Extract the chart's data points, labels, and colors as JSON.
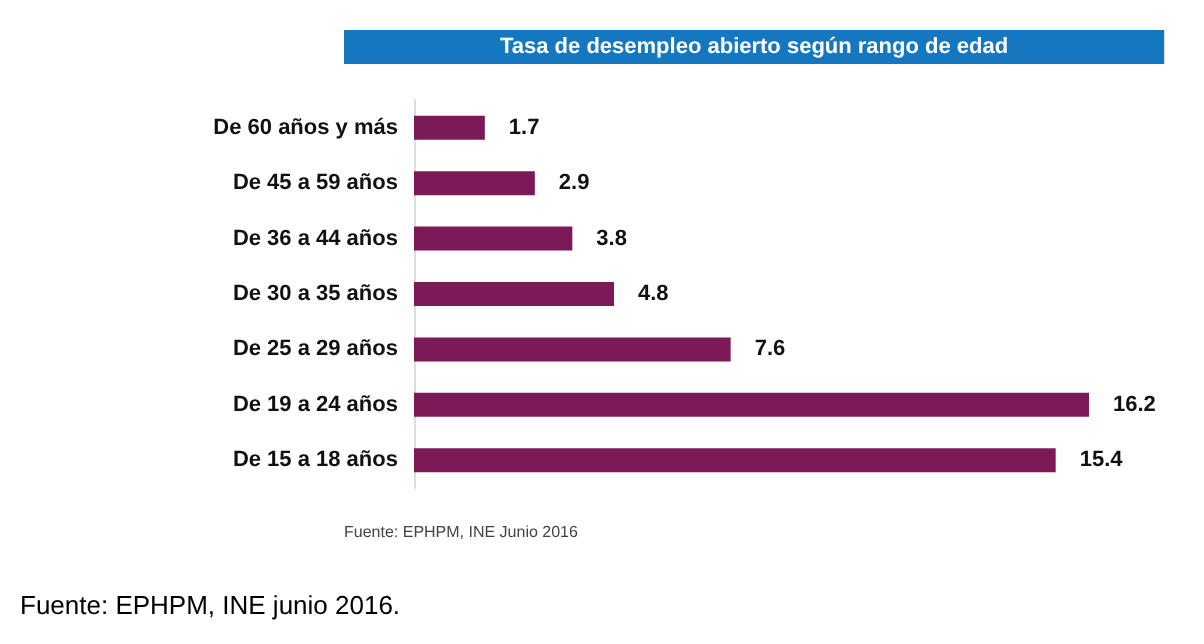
{
  "chart_data": {
    "type": "bar",
    "orientation": "horizontal",
    "title": "Tasa de desempleo abierto según rango de edad",
    "categories": [
      "De 60 años y más",
      "De 45 a 59 años",
      "De 36 a 44 años",
      "De 30 a 35 años",
      "De 25 a 29 años",
      "De 19 a 24 años",
      "De 15 a 18 años"
    ],
    "values": [
      1.7,
      2.9,
      3.8,
      4.8,
      7.6,
      16.2,
      15.4
    ],
    "color": "#7b1a56",
    "data_labels": true,
    "tick_labels": "y",
    "annotations": [
      "Fuente: EPHPM, INE Junio 2016",
      "Fuente: EPHPM, INE junio 2016."
    ]
  }
}
